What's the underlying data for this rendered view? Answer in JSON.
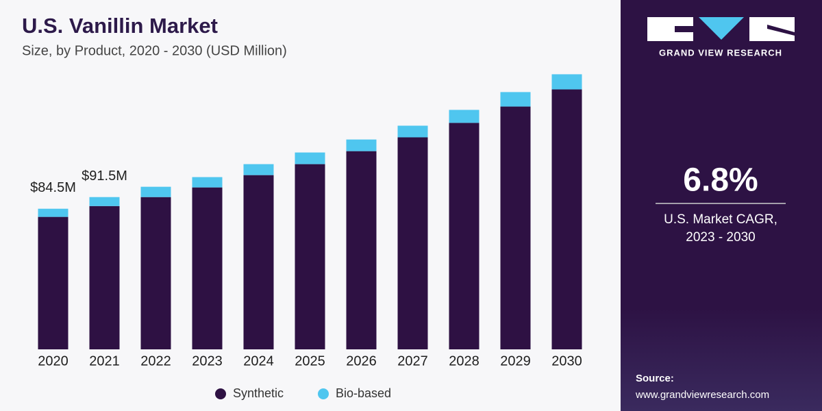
{
  "chart_data": {
    "type": "bar",
    "stacked": true,
    "title": "U.S. Vanillin Market",
    "subtitle": "Size, by Product, 2020 - 2030 (USD Million)",
    "categories": [
      "2020",
      "2021",
      "2022",
      "2023",
      "2024",
      "2025",
      "2026",
      "2027",
      "2028",
      "2029",
      "2030"
    ],
    "series": [
      {
        "name": "Synthetic",
        "color": "#2e1143",
        "values": [
          79.6,
          86.1,
          91.5,
          97.3,
          104.7,
          111.3,
          119.1,
          127.4,
          136.1,
          145.9,
          156.2
        ]
      },
      {
        "name": "Bio-based",
        "color": "#4fc6ef",
        "values": [
          4.9,
          5.4,
          6.2,
          6.2,
          6.6,
          7.0,
          7.0,
          7.0,
          7.8,
          8.7,
          9.1
        ]
      }
    ],
    "annotations": [
      {
        "category": "2020",
        "value": 84.5,
        "text": "$84.5M"
      },
      {
        "category": "2021",
        "value": 91.5,
        "text": "$91.5M"
      }
    ],
    "ylim": [
      0,
      170
    ],
    "legend": "bottom"
  },
  "sidebar": {
    "brand": "GRAND VIEW RESEARCH",
    "highlight": "6.8%",
    "caption": [
      "U.S. Market CAGR,",
      "2023 - 2030"
    ],
    "source_label": "Source:",
    "source_url": "www.grandviewresearch.com"
  }
}
